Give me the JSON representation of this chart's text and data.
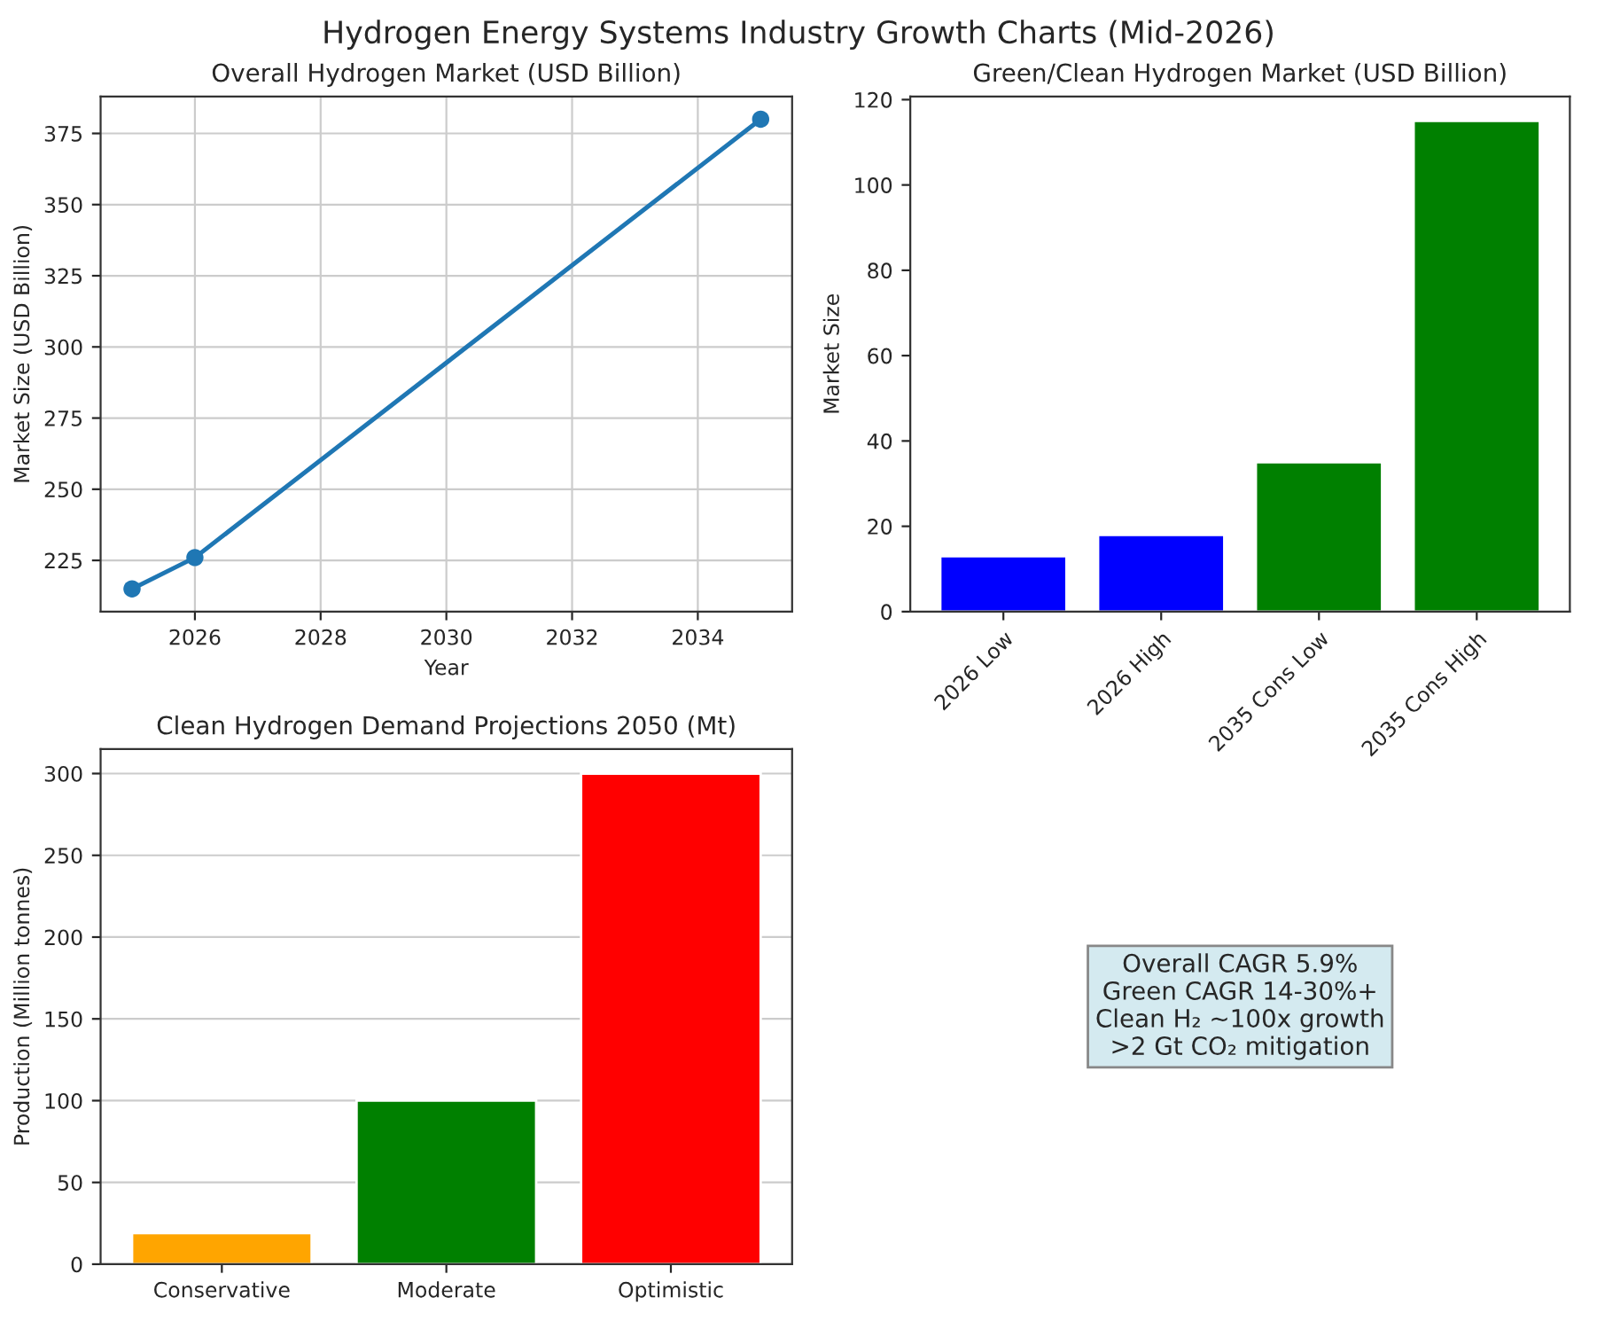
{
  "chart_data": [
    {
      "type": "line",
      "title": "Overall Hydrogen Market (USD Billion)",
      "xlabel": "Year",
      "ylabel": "Market Size (USD Billion)",
      "x": [
        2025,
        2026,
        2035
      ],
      "series": [
        {
          "color": "#1f77b4",
          "values": [
            215,
            226,
            380
          ]
        }
      ],
      "xlim": [
        2024.5,
        2035.5
      ],
      "xticks": [
        2026,
        2028,
        2030,
        2032,
        2034
      ],
      "ylim": [
        207,
        388
      ],
      "yticks": [
        225,
        250,
        275,
        300,
        325,
        350,
        375
      ],
      "grid": true,
      "marker": "circle",
      "line_style": "solid"
    },
    {
      "type": "bar",
      "title": "Green/Clean Hydrogen Market (USD Billion)",
      "ylabel": "Market Size",
      "categories": [
        "2026 Low",
        "2026 High",
        "2035 Cons Low",
        "2035 Cons High"
      ],
      "values": [
        13,
        18,
        35,
        115
      ],
      "colors": [
        "#0000ff",
        "#0000ff",
        "#008000",
        "#008000"
      ],
      "ylim": [
        0,
        120.75
      ],
      "yticks": [
        0,
        20,
        40,
        60,
        80,
        100,
        120
      ],
      "grid": false
    },
    {
      "type": "bar",
      "title": "Clean Hydrogen Demand Projections 2050 (Mt)",
      "ylabel": "Production (Million tonnes)",
      "categories": [
        "Conservative",
        "Moderate",
        "Optimistic"
      ],
      "values": [
        19,
        100,
        300
      ],
      "colors": [
        "#ffa500",
        "#008000",
        "#ff0000"
      ],
      "ylim": [
        0,
        315
      ],
      "yticks": [
        0,
        50,
        100,
        150,
        200,
        250,
        300
      ],
      "grid": "y"
    },
    {
      "type": "other",
      "title": "Hydrogen Energy Systems Industry Growth Charts (Mid-2026)",
      "annotations": [
        "Overall CAGR 5.9%",
        "Green CAGR 14-30%+",
        "Clean H₂ ~100x growth",
        ">2 Gt CO₂ mitigation"
      ]
    }
  ]
}
